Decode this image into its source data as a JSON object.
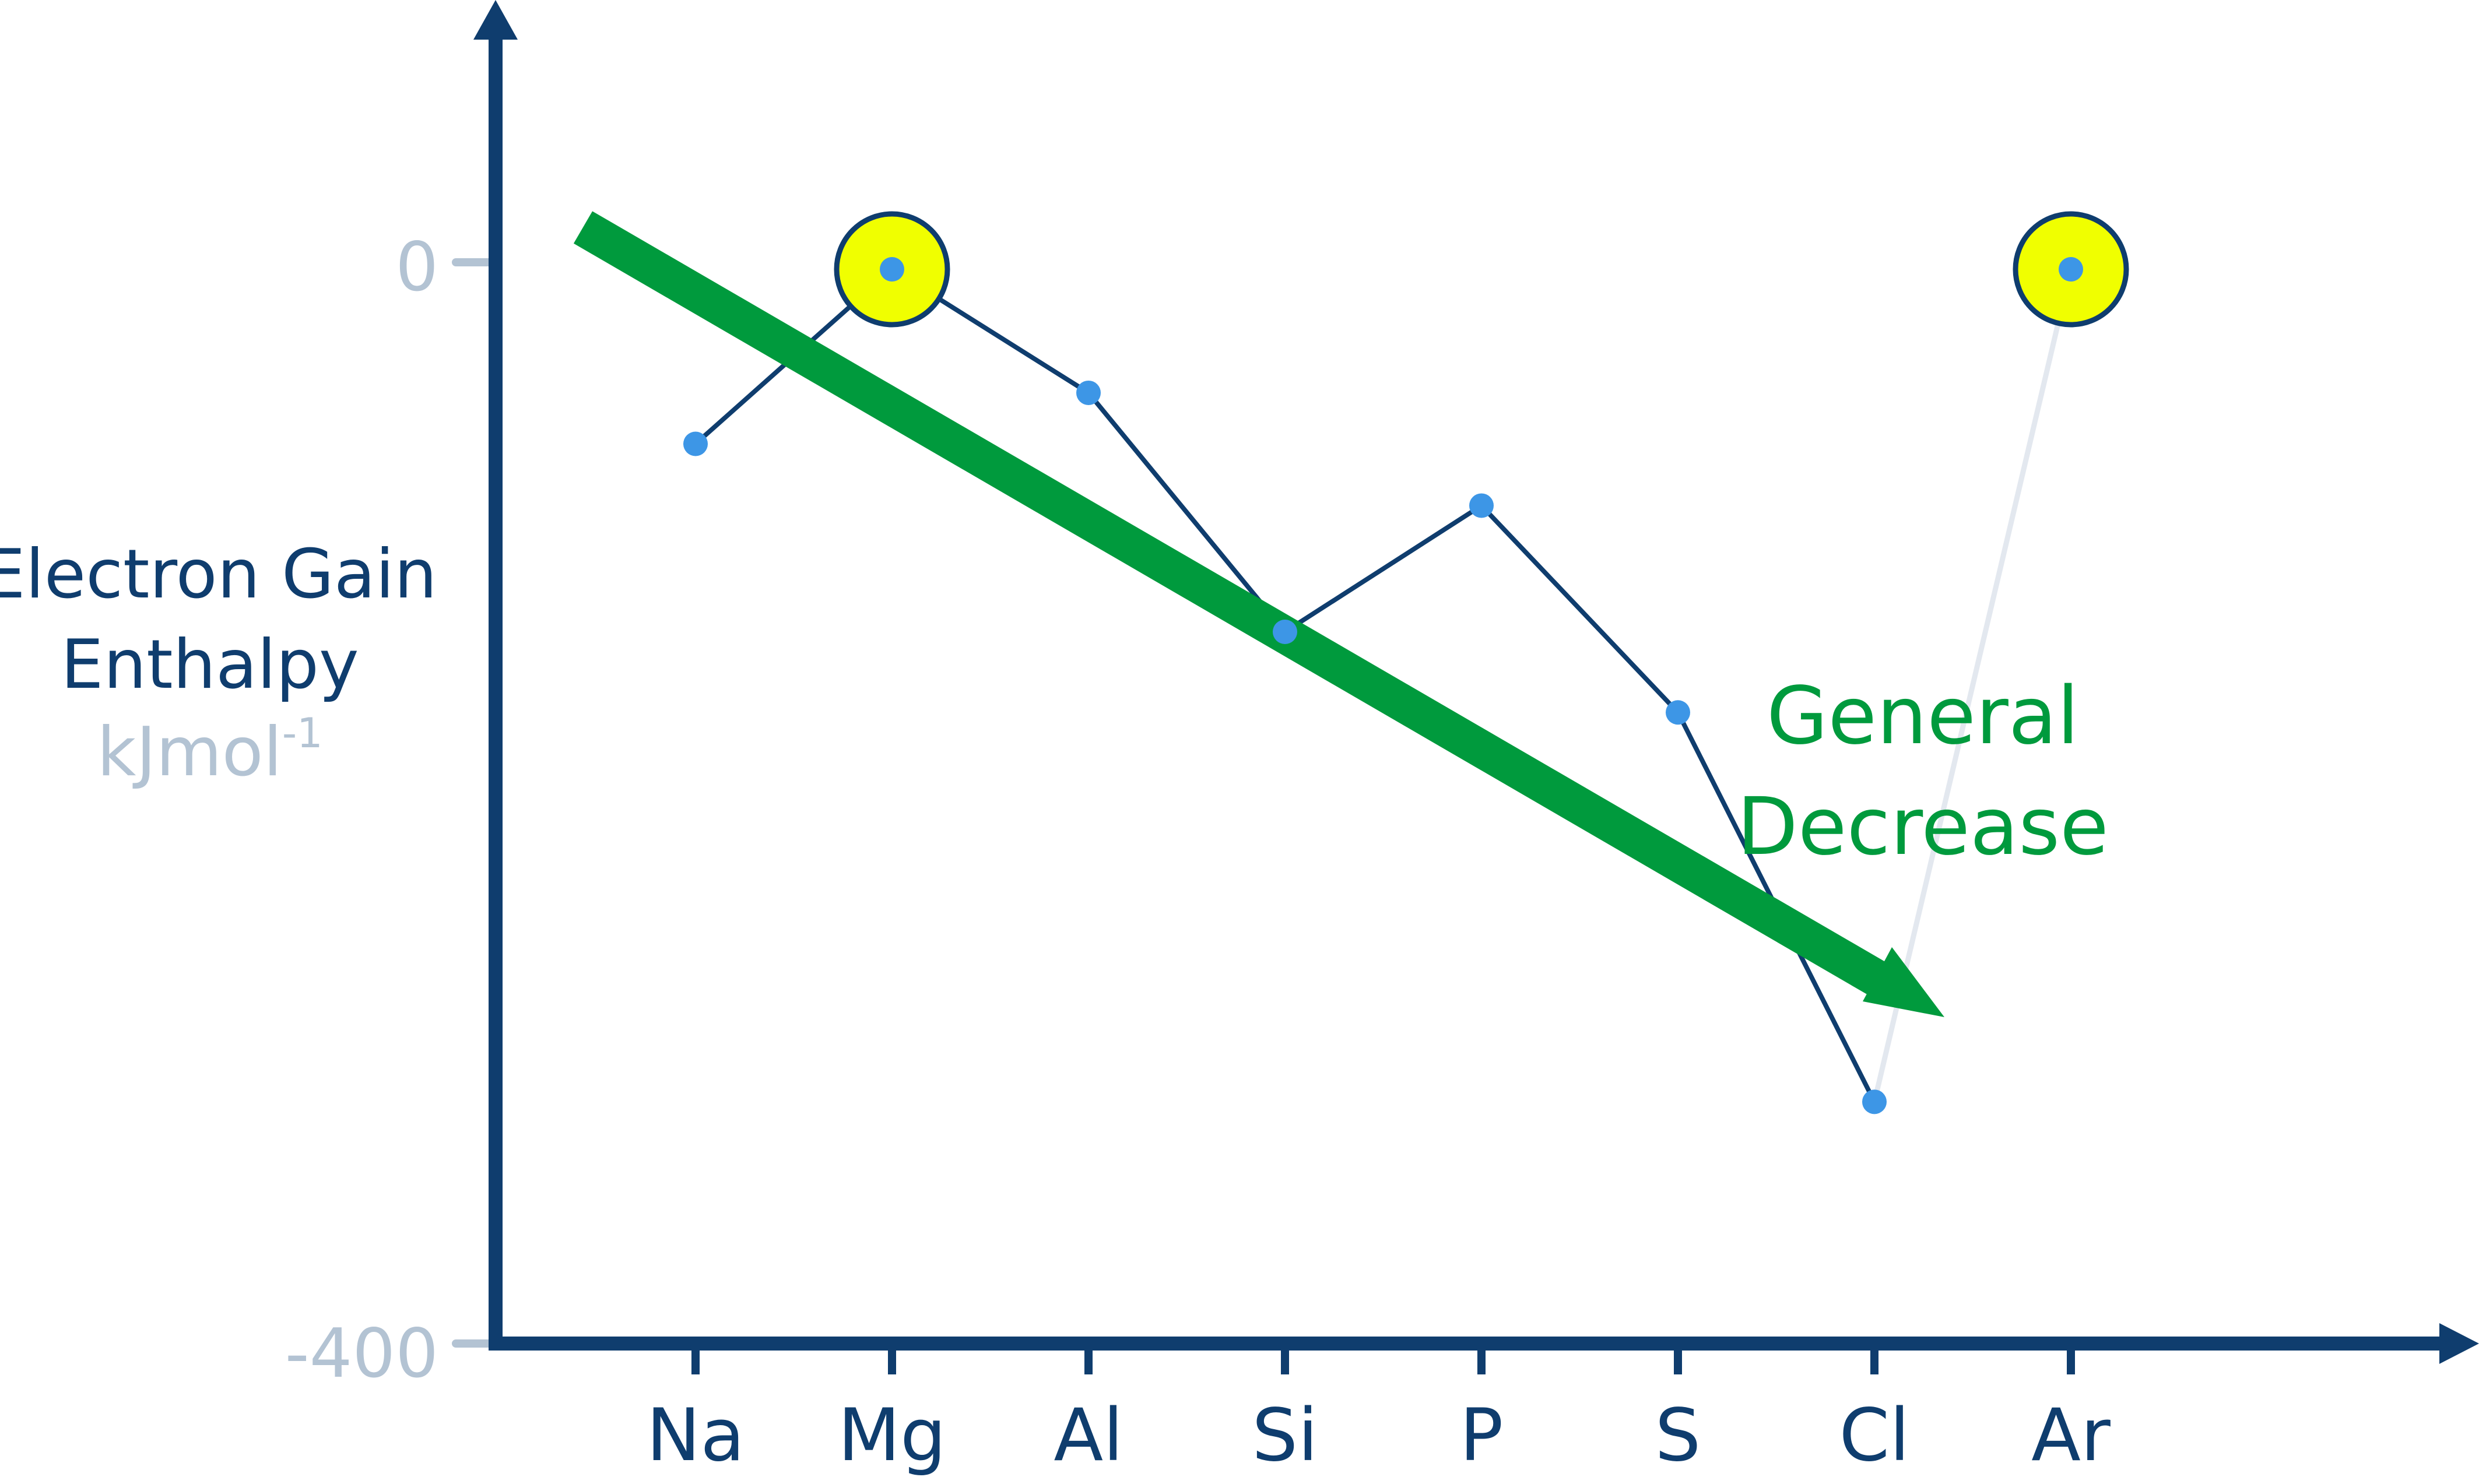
{
  "chart_data": {
    "type": "line",
    "ylabel": [
      "Electron Gain",
      "Enthalpy"
    ],
    "yunit_base": "kJmol",
    "yunit_sup": "-1",
    "ytick_labels": [
      "0",
      "-400"
    ],
    "ylim": [
      -400,
      0
    ],
    "categories": [
      "Na",
      "Mg",
      "Al",
      "Si",
      "P",
      "S",
      "Cl",
      "Ar"
    ],
    "values": [
      -65,
      0,
      -46,
      -135,
      -88,
      -165,
      -310,
      0
    ],
    "highlighted": [
      "Mg",
      "Ar"
    ],
    "annotation": [
      "General",
      "Decrease"
    ],
    "grid": false,
    "colors": {
      "axis": "#0f3d6e",
      "series_line": "#0f3d6e",
      "marker": "#3d96e6",
      "faded_segment": "#e3e8ef",
      "highlight_fill": "#f0ff00",
      "trend_arrow": "#009a3d",
      "tick_label_y": "#b3c3d3"
    }
  }
}
